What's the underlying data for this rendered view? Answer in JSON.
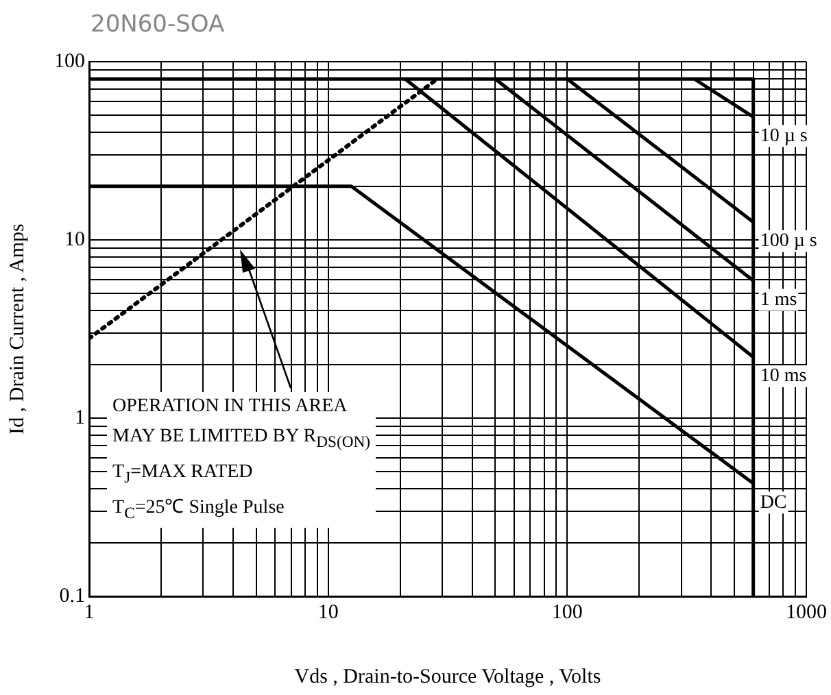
{
  "chart_data": {
    "type": "line",
    "title": "20N60-SOA",
    "xlabel": "Vds , Drain-to-Source Voltage , Volts",
    "ylabel": "Id , Drain Current , Amps",
    "log": "xy",
    "grid": true,
    "legend": false,
    "marker": "none",
    "xlim": [
      1,
      1000
    ],
    "ylim": [
      0.1,
      100
    ],
    "xticks": [
      1,
      {
        "value": 2,
        "label": null
      },
      {
        "value": 3,
        "label": null
      },
      {
        "value": 4,
        "label": null
      },
      {
        "value": 5,
        "label": null
      },
      {
        "value": 6,
        "label": null
      },
      {
        "value": 7,
        "label": null
      },
      {
        "value": 8,
        "label": null
      },
      {
        "value": 9,
        "label": null
      },
      10,
      {
        "value": 20,
        "label": null
      },
      {
        "value": 30,
        "label": null
      },
      {
        "value": 40,
        "label": null
      },
      {
        "value": 50,
        "label": null
      },
      {
        "value": 60,
        "label": null
      },
      {
        "value": 70,
        "label": null
      },
      {
        "value": 80,
        "label": null
      },
      {
        "value": 90,
        "label": null
      },
      100,
      {
        "value": 200,
        "label": null
      },
      {
        "value": 300,
        "label": null
      },
      {
        "value": 400,
        "label": null
      },
      {
        "value": 500,
        "label": null
      },
      {
        "value": 600,
        "label": null
      },
      {
        "value": 700,
        "label": null
      },
      {
        "value": 800,
        "label": null
      },
      {
        "value": 900,
        "label": null
      },
      1000
    ],
    "yticks": [
      0.1,
      {
        "value": 0.2,
        "label": null
      },
      {
        "value": 0.3,
        "label": null
      },
      {
        "value": 0.4,
        "label": null
      },
      {
        "value": 0.5,
        "label": null
      },
      {
        "value": 0.6,
        "label": null
      },
      {
        "value": 0.7,
        "label": null
      },
      {
        "value": 0.8,
        "label": null
      },
      {
        "value": 0.9,
        "label": null
      },
      1,
      {
        "value": 2,
        "label": null
      },
      {
        "value": 3,
        "label": null
      },
      {
        "value": 4,
        "label": null
      },
      {
        "value": 5,
        "label": null
      },
      {
        "value": 6,
        "label": null
      },
      {
        "value": 7,
        "label": null
      },
      {
        "value": 8,
        "label": null
      },
      {
        "value": 9,
        "label": null
      },
      10,
      {
        "value": 20,
        "label": null
      },
      {
        "value": 30,
        "label": null
      },
      {
        "value": 40,
        "label": null
      },
      {
        "value": 50,
        "label": null
      },
      {
        "value": 60,
        "label": null
      },
      {
        "value": 70,
        "label": null
      },
      {
        "value": 80,
        "label": null
      },
      {
        "value": 90,
        "label": null
      },
      100
    ],
    "series": [
      {
        "color": "#000000",
        "x": [
          1,
          600
        ],
        "values": [
          80,
          80
        ]
      },
      {
        "color": "#000000",
        "x": [
          600,
          600
        ],
        "values": [
          80,
          0.1
        ]
      },
      {
        "color": "#000000",
        "line_style": "dotted",
        "x": [
          1,
          28.6
        ],
        "values": [
          2.8,
          80
        ]
      },
      {
        "name": "10 µ s",
        "color": "#000000",
        "x": [
          340,
          600
        ],
        "values": [
          80,
          49
        ]
      },
      {
        "name": "100 µ s",
        "color": "#000000",
        "x": [
          100,
          600
        ],
        "values": [
          80,
          12.6
        ]
      },
      {
        "name": "1 ms",
        "color": "#000000",
        "x": [
          50,
          600
        ],
        "values": [
          80,
          5.9
        ]
      },
      {
        "name": "10 ms",
        "color": "#000000",
        "x": [
          21,
          600
        ],
        "values": [
          80,
          2.2
        ]
      },
      {
        "name": "DC",
        "color": "#000000",
        "x": [
          1,
          12.5,
          600
        ],
        "values": [
          20,
          20,
          0.43
        ]
      }
    ],
    "annotations": [
      "OPERATION IN THIS AREA",
      "MAY BE LIMITED BY R$_{DS(ON)}$",
      "T$_{J}$=MAX RATED",
      "T$_{C}$=25℃  Single Pulse"
    ]
  }
}
